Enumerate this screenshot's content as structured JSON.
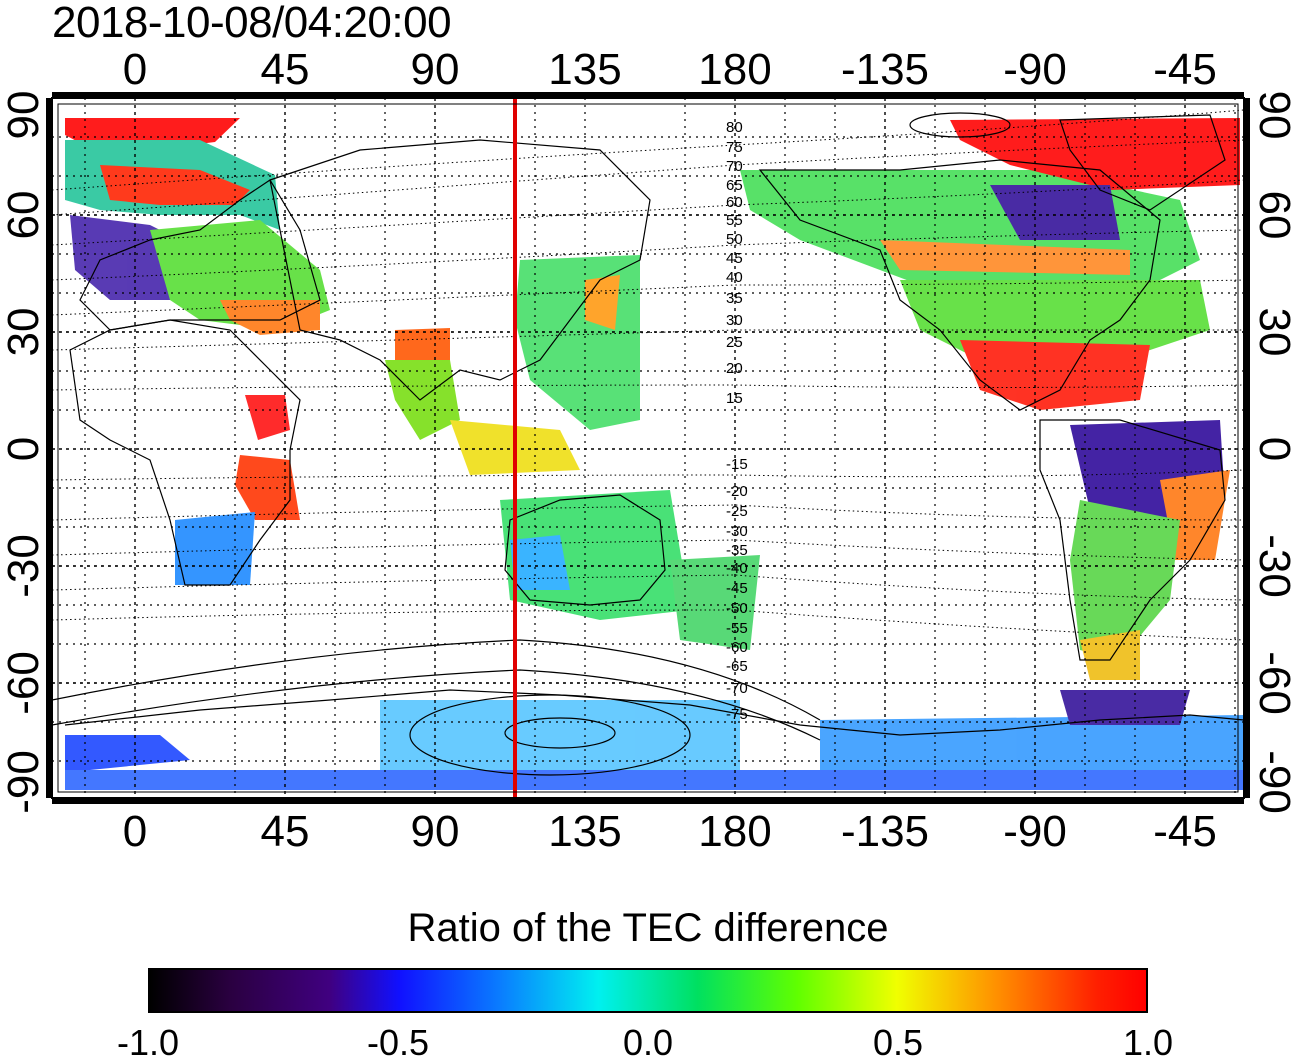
{
  "title": "2018-10-08/04:20:00",
  "map": {
    "lon_ticks": [
      "0",
      "45",
      "90",
      "135",
      "180",
      "-135",
      "-90",
      "-45"
    ],
    "lat_ticks": [
      "90",
      "60",
      "30",
      "0",
      "-30",
      "-60",
      "-90"
    ],
    "lon_range": [
      -20,
      340
    ],
    "lat_range": [
      -90,
      90
    ],
    "terminator_lon": 116,
    "terminator_color": "#e00000",
    "contour_labels": [
      "80",
      "75",
      "70",
      "65",
      "60",
      "55",
      "50",
      "45",
      "40",
      "35",
      "30",
      "25",
      "20",
      "15",
      "-15",
      "-20",
      "-25",
      "-30",
      "-35",
      "-40",
      "-45",
      "-50",
      "-55",
      "-60",
      "-65",
      "-70",
      "-75"
    ]
  },
  "colorbar": {
    "title": "Ratio of the TEC difference",
    "ticks": [
      "-1.0",
      "-0.5",
      "0.0",
      "0.5",
      "1.0"
    ],
    "range": [
      -1.0,
      1.0
    ],
    "colors": [
      "#000000",
      "#400080",
      "#1010ff",
      "#00f0f0",
      "#00e060",
      "#60ff00",
      "#f0ff00",
      "#ff9000",
      "#ff0000"
    ]
  }
}
